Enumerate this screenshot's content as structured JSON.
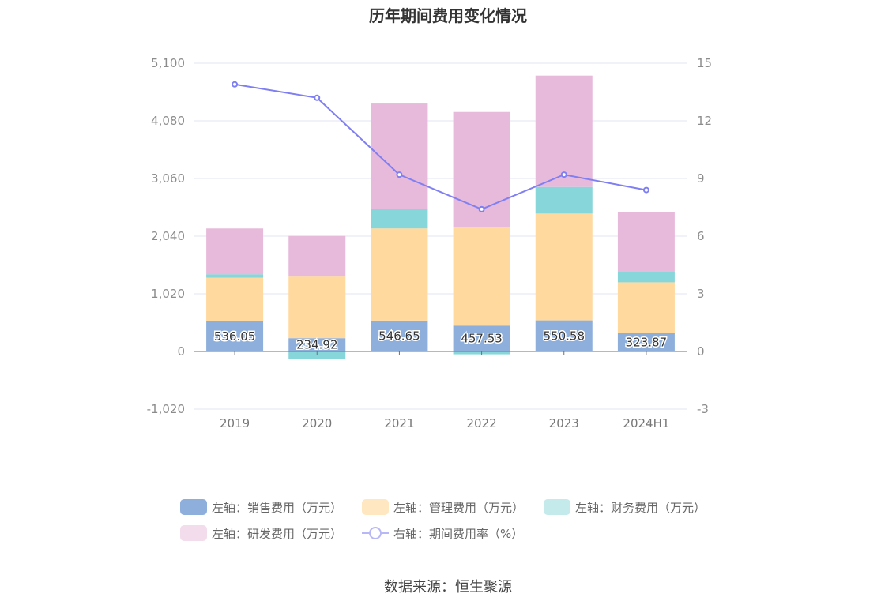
{
  "colors": {
    "sales": "#8eafdc",
    "admin": "#ffd99e",
    "finance": "#86d6da",
    "rnd": "#e7badb",
    "rate": "#7f7ff2",
    "grid": "#e3e6f3",
    "axis": "#6e7079"
  },
  "chart_data": {
    "type": "bar",
    "title": "历年期间费用变化情况",
    "categories": [
      "2019",
      "2020",
      "2021",
      "2022",
      "2023",
      "2024H1"
    ],
    "y_left": {
      "ticks": [
        "5,100",
        "4,080",
        "3,060",
        "2,040",
        "1,020",
        "0",
        "-1,020"
      ],
      "ylim": [
        -1020,
        5100
      ]
    },
    "y_right": {
      "ticks": [
        "15",
        "12",
        "9",
        "6",
        "3",
        "0",
        "-3"
      ],
      "ylim": [
        -3,
        15
      ]
    },
    "series": [
      {
        "name": "左轴：销售费用（万元）",
        "type": "bar",
        "axis": "left",
        "values": [
          536.05,
          234.92,
          546.65,
          457.53,
          550.58,
          323.87
        ],
        "labels": [
          "536.05",
          "234.92",
          "546.65",
          "457.53",
          "550.58",
          "323.87"
        ]
      },
      {
        "name": "左轴：管理费用（万元）",
        "type": "bar",
        "axis": "left",
        "values": [
          770,
          1090,
          1630,
          1750,
          1890,
          900
        ]
      },
      {
        "name": "左轴：财务费用（万元）",
        "type": "bar",
        "axis": "left",
        "values": [
          60,
          -140,
          340,
          -50,
          470,
          180
        ]
      },
      {
        "name": "左轴：研发费用（万元）",
        "type": "bar",
        "axis": "left",
        "values": [
          810,
          720,
          1870,
          2030,
          1970,
          1060
        ]
      },
      {
        "name": "右轴：期间费用率（%）",
        "type": "line",
        "axis": "right",
        "values": [
          13.9,
          13.2,
          9.2,
          7.4,
          9.2,
          8.4
        ]
      }
    ],
    "grid": true,
    "legend_position": "bottom"
  },
  "source": "数据来源：恒生聚源"
}
